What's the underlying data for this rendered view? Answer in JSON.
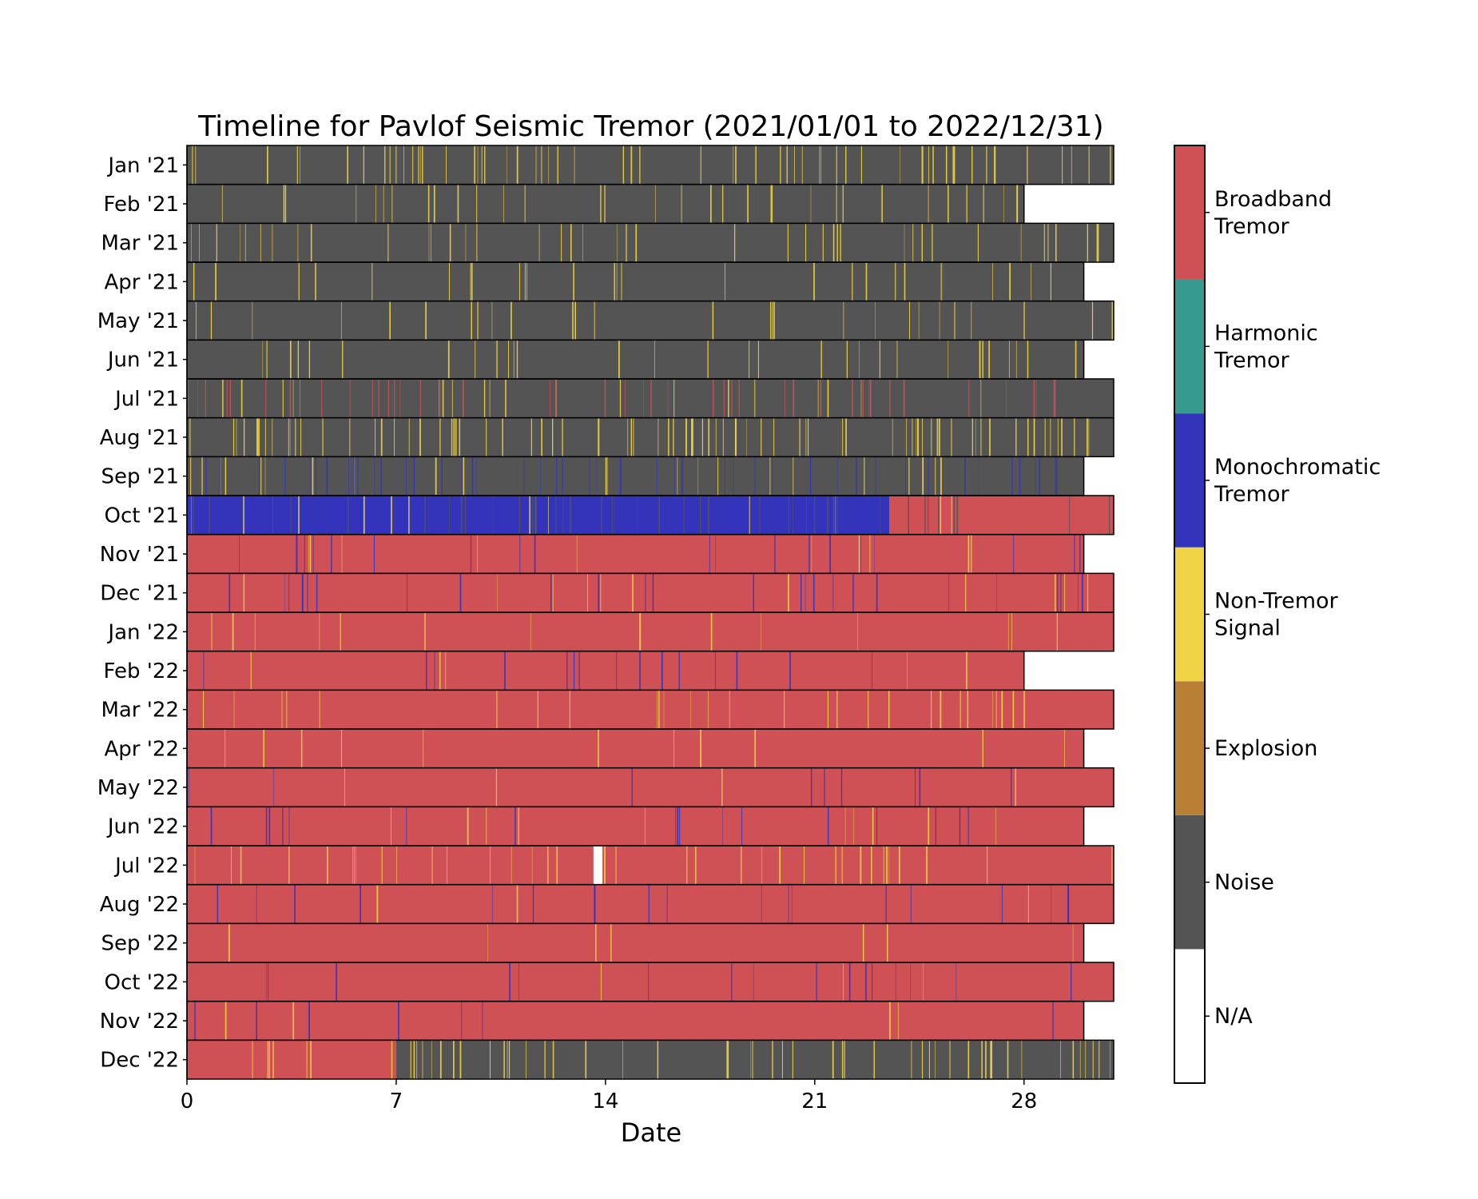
{
  "chart_data": {
    "type": "heatmap",
    "title": "Timeline for Pavlof Seismic Tremor (2021/01/01 to 2022/12/31)",
    "xlabel": "Date",
    "ylabel": "",
    "xlim": [
      0,
      31
    ],
    "xticks": [
      0,
      7,
      14,
      21,
      28
    ],
    "xtick_labels": [
      "0",
      "7",
      "14",
      "21",
      "28"
    ],
    "classes": [
      {
        "name": "N/A",
        "label_lines": [
          "N/A"
        ],
        "color": "#ffffff"
      },
      {
        "name": "Noise",
        "label_lines": [
          "Noise"
        ],
        "color": "#545454"
      },
      {
        "name": "Explosion",
        "label_lines": [
          "Explosion"
        ],
        "color": "#b97f35"
      },
      {
        "name": "Non-Tremor Signal",
        "label_lines": [
          "Non-Tremor",
          "Signal"
        ],
        "color": "#f0d445"
      },
      {
        "name": "Monochromatic Tremor",
        "label_lines": [
          "Monochromatic",
          "Tremor"
        ],
        "color": "#3333bb"
      },
      {
        "name": "Harmonic Tremor",
        "label_lines": [
          "Harmonic",
          "Tremor"
        ],
        "color": "#379a90"
      },
      {
        "name": "Broadband Tremor",
        "label_lines": [
          "Broadband",
          "Tremor"
        ],
        "color": "#cf5055"
      }
    ],
    "rows": [
      {
        "label": "Jan '21",
        "days": 31,
        "segments": [
          [
            0,
            31,
            "Noise"
          ]
        ],
        "accent": "Non-Tremor Signal",
        "density": 0.35
      },
      {
        "label": "Feb '21",
        "days": 28,
        "segments": [
          [
            0,
            28,
            "Noise"
          ]
        ],
        "accent": "Non-Tremor Signal",
        "density": 0.2
      },
      {
        "label": "Mar '21",
        "days": 31,
        "segments": [
          [
            0,
            31,
            "Noise"
          ]
        ],
        "accent": "Non-Tremor Signal",
        "density": 0.22
      },
      {
        "label": "Apr '21",
        "days": 30,
        "segments": [
          [
            0,
            30,
            "Noise"
          ]
        ],
        "accent": "Non-Tremor Signal",
        "density": 0.15
      },
      {
        "label": "May '21",
        "days": 31,
        "segments": [
          [
            0,
            31,
            "Noise"
          ]
        ],
        "accent": "Non-Tremor Signal",
        "density": 0.15
      },
      {
        "label": "Jun '21",
        "days": 30,
        "segments": [
          [
            0,
            30,
            "Noise"
          ]
        ],
        "accent": "Non-Tremor Signal",
        "density": 0.18
      },
      {
        "label": "Jul '21",
        "days": 31,
        "segments": [
          [
            0,
            31,
            "Noise"
          ]
        ],
        "accent": "Broadband Tremor",
        "density": 0.35
      },
      {
        "label": "Aug '21",
        "days": 31,
        "segments": [
          [
            0,
            31,
            "Noise"
          ]
        ],
        "accent": "Non-Tremor Signal",
        "density": 0.45
      },
      {
        "label": "Sep '21",
        "days": 30,
        "segments": [
          [
            0,
            30,
            "Noise"
          ]
        ],
        "accent": "Monochromatic Tremor",
        "density": 0.4
      },
      {
        "label": "Oct '21",
        "days": 31,
        "segments": [
          [
            0,
            23.5,
            "Monochromatic Tremor"
          ],
          [
            23.5,
            31,
            "Broadband Tremor"
          ]
        ],
        "accent": "Noise",
        "density": 0.3
      },
      {
        "label": "Nov '21",
        "days": 30,
        "segments": [
          [
            0,
            30,
            "Broadband Tremor"
          ]
        ],
        "accent": "Monochromatic Tremor",
        "density": 0.18
      },
      {
        "label": "Dec '21",
        "days": 31,
        "segments": [
          [
            0,
            31,
            "Broadband Tremor"
          ]
        ],
        "accent": "Monochromatic Tremor",
        "density": 0.2
      },
      {
        "label": "Jan '22",
        "days": 31,
        "segments": [
          [
            0,
            31,
            "Broadband Tremor"
          ]
        ],
        "accent": "Non-Tremor Signal",
        "density": 0.08
      },
      {
        "label": "Feb '22",
        "days": 28,
        "segments": [
          [
            0,
            28,
            "Broadband Tremor"
          ]
        ],
        "accent": "Monochromatic Tremor",
        "density": 0.12
      },
      {
        "label": "Mar '22",
        "days": 31,
        "segments": [
          [
            0,
            31,
            "Broadband Tremor"
          ]
        ],
        "accent": "Non-Tremor Signal",
        "density": 0.15
      },
      {
        "label": "Apr '22",
        "days": 30,
        "segments": [
          [
            0,
            30,
            "Broadband Tremor"
          ]
        ],
        "accent": "Non-Tremor Signal",
        "density": 0.06
      },
      {
        "label": "May '22",
        "days": 31,
        "segments": [
          [
            0,
            31,
            "Broadband Tremor"
          ]
        ],
        "accent": "Monochromatic Tremor",
        "density": 0.07
      },
      {
        "label": "Jun '22",
        "days": 30,
        "segments": [
          [
            0,
            30,
            "Broadband Tremor"
          ]
        ],
        "accent": "Monochromatic Tremor",
        "density": 0.15
      },
      {
        "label": "Jul '22",
        "days": 31,
        "segments": [
          [
            0,
            13.6,
            "Broadband Tremor"
          ],
          [
            13.6,
            13.9,
            "N/A"
          ],
          [
            13.9,
            31,
            "Broadband Tremor"
          ]
        ],
        "accent": "Non-Tremor Signal",
        "density": 0.2
      },
      {
        "label": "Aug '22",
        "days": 31,
        "segments": [
          [
            0,
            31,
            "Broadband Tremor"
          ]
        ],
        "accent": "Monochromatic Tremor",
        "density": 0.12
      },
      {
        "label": "Sep '22",
        "days": 30,
        "segments": [
          [
            0,
            30,
            "Broadband Tremor"
          ]
        ],
        "accent": "Non-Tremor Signal",
        "density": 0.04
      },
      {
        "label": "Oct '22",
        "days": 31,
        "segments": [
          [
            0,
            31,
            "Broadband Tremor"
          ]
        ],
        "accent": "Monochromatic Tremor",
        "density": 0.1
      },
      {
        "label": "Nov '22",
        "days": 30,
        "segments": [
          [
            0,
            30,
            "Broadband Tremor"
          ]
        ],
        "accent": "Monochromatic Tremor",
        "density": 0.06
      },
      {
        "label": "Dec '22",
        "days": 31,
        "segments": [
          [
            0,
            7,
            "Broadband Tremor"
          ],
          [
            7,
            31,
            "Noise"
          ]
        ],
        "accent": "Non-Tremor Signal",
        "density": 0.3
      }
    ],
    "grid": false,
    "legend": "colorbar at right"
  }
}
